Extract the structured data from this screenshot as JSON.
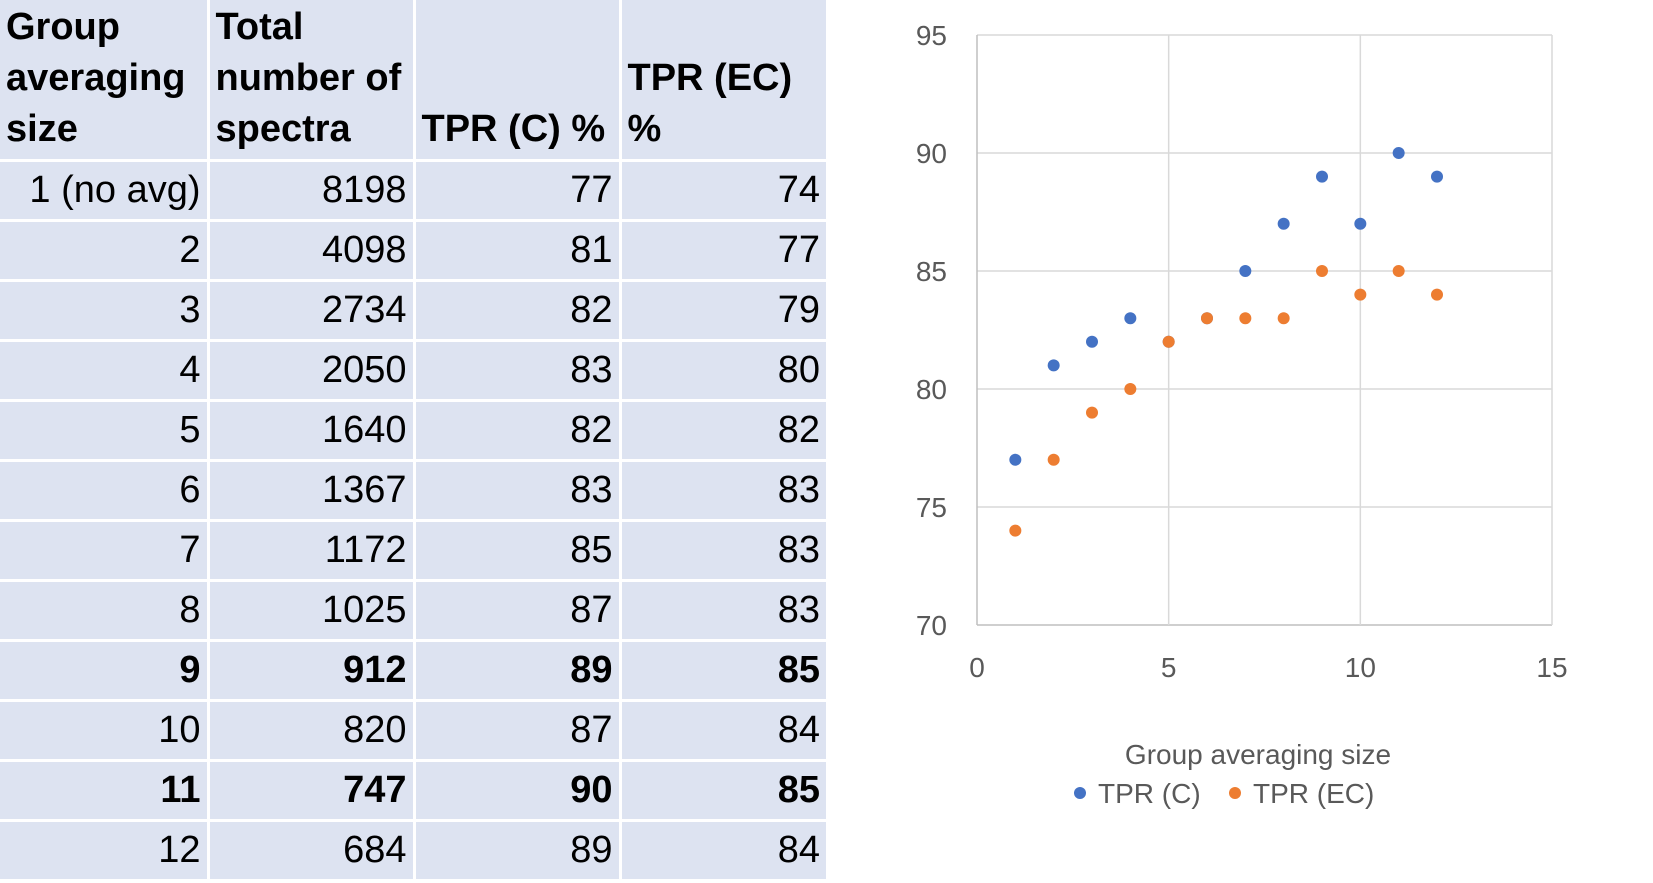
{
  "table": {
    "headers": [
      "Group averaging size",
      "Total number of spectra",
      "TPR (C) %",
      "TPR (EC) %"
    ],
    "rows": [
      {
        "cells": [
          "1 (no avg)",
          "8198",
          "77",
          "74"
        ],
        "bold": false
      },
      {
        "cells": [
          "2",
          "4098",
          "81",
          "77"
        ],
        "bold": false
      },
      {
        "cells": [
          "3",
          "2734",
          "82",
          "79"
        ],
        "bold": false
      },
      {
        "cells": [
          "4",
          "2050",
          "83",
          "80"
        ],
        "bold": false
      },
      {
        "cells": [
          "5",
          "1640",
          "82",
          "82"
        ],
        "bold": false
      },
      {
        "cells": [
          "6",
          "1367",
          "83",
          "83"
        ],
        "bold": false
      },
      {
        "cells": [
          "7",
          "1172",
          "85",
          "83"
        ],
        "bold": false
      },
      {
        "cells": [
          "8",
          "1025",
          "87",
          "83"
        ],
        "bold": false
      },
      {
        "cells": [
          "9",
          "912",
          "89",
          "85"
        ],
        "bold": true
      },
      {
        "cells": [
          "10",
          "820",
          "87",
          "84"
        ],
        "bold": false
      },
      {
        "cells": [
          "11",
          "747",
          "90",
          "85"
        ],
        "bold": true
      },
      {
        "cells": [
          "12",
          "684",
          "89",
          "84"
        ],
        "bold": false
      }
    ]
  },
  "chart_data": {
    "type": "scatter",
    "title": "",
    "xlabel": "Group averaging size",
    "ylabel": "",
    "xlim": [
      0,
      15
    ],
    "ylim": [
      70,
      95
    ],
    "xticks": [
      0,
      5,
      10,
      15
    ],
    "yticks": [
      70,
      75,
      80,
      85,
      90,
      95
    ],
    "grid": true,
    "legend_position": "bottom",
    "series": [
      {
        "name": "TPR (C)",
        "color": "#4472c4",
        "x": [
          1,
          2,
          3,
          4,
          5,
          6,
          7,
          8,
          9,
          10,
          11,
          12
        ],
        "y": [
          77,
          81,
          82,
          83,
          82,
          83,
          85,
          87,
          89,
          87,
          90,
          89
        ]
      },
      {
        "name": "TPR (EC)",
        "color": "#ed7d31",
        "x": [
          1,
          2,
          3,
          4,
          5,
          6,
          7,
          8,
          9,
          10,
          11,
          12
        ],
        "y": [
          74,
          77,
          79,
          80,
          82,
          83,
          83,
          83,
          85,
          84,
          85,
          84
        ]
      }
    ]
  }
}
